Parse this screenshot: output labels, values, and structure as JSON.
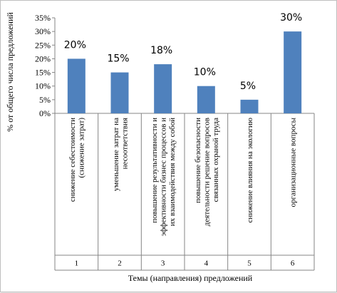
{
  "chart_data": {
    "type": "bar",
    "categories": [
      "1",
      "2",
      "3",
      "4",
      "5",
      "6"
    ],
    "category_labels": [
      [
        "снижение себестоимости",
        "(снижение затрат)"
      ],
      [
        "уменьшение затрат на",
        "несоответствия"
      ],
      [
        "повышение результативности и",
        "эффективности бизнес процессов и",
        "их взаимодействия между собой"
      ],
      [
        "повышение безопасности",
        "деятельности решение вопросов",
        "связанных  охраной труда"
      ],
      [
        "снижение влияния на экологию"
      ],
      [
        "организационные вопросы"
      ]
    ],
    "values": [
      20,
      15,
      18,
      10,
      5,
      30
    ],
    "data_labels": [
      "20%",
      "15%",
      "18%",
      "10%",
      "5%",
      "30%"
    ],
    "ylim": [
      0,
      35
    ],
    "yticks": [
      0,
      5,
      10,
      15,
      20,
      25,
      30,
      35
    ],
    "ytick_labels": [
      "0%",
      "5%",
      "10%",
      "15%",
      "20%",
      "25%",
      "30%",
      "35%"
    ],
    "ylabel": "% от общего числа предложений",
    "xlabel": "Темы (направления) предложений",
    "grid": false,
    "colors": {
      "bar": "#4f81bd",
      "axis": "#868686",
      "text": "#000000"
    }
  }
}
